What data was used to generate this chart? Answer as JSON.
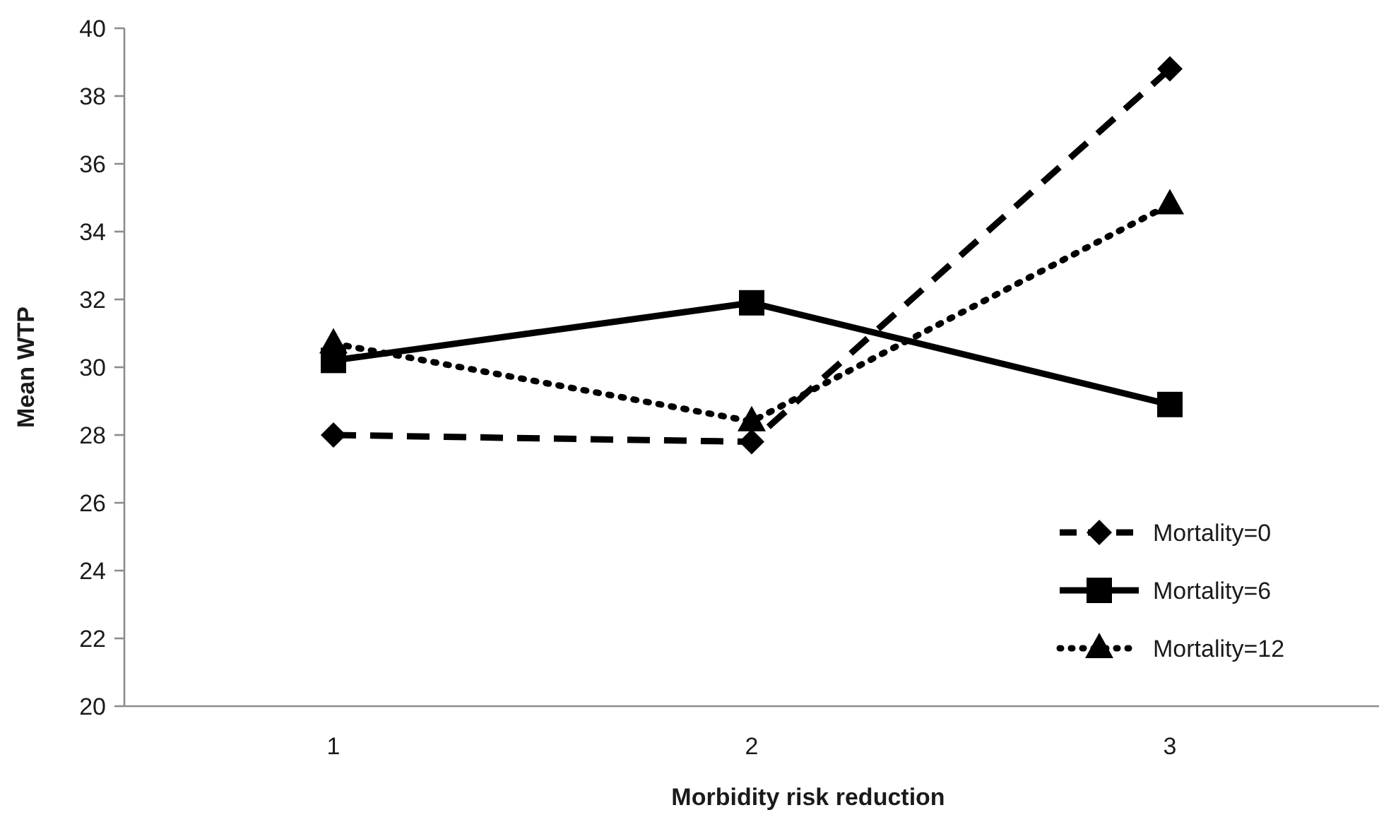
{
  "chart_data": {
    "type": "line",
    "xlabel": "Morbidity risk reduction",
    "ylabel": "Mean WTP",
    "categories": [
      "1",
      "2",
      "3"
    ],
    "ylim": [
      20,
      40
    ],
    "yticks": [
      20,
      22,
      24,
      26,
      28,
      30,
      32,
      34,
      36,
      38,
      40
    ],
    "grid": false,
    "legend": "bottom right",
    "series": [
      {
        "name": "Mortality=0",
        "color": "#000000",
        "marker": "diamond",
        "line_style": "dashed",
        "values": [
          28.0,
          27.8,
          38.8
        ]
      },
      {
        "name": "Mortality=6",
        "color": "#000000",
        "marker": "square",
        "line_style": "solid",
        "values": [
          30.2,
          31.9,
          28.9
        ]
      },
      {
        "name": "Mortality=12",
        "color": "#000000",
        "marker": "triangle",
        "line_style": "dotted",
        "values": [
          30.7,
          28.4,
          34.8
        ]
      }
    ]
  }
}
